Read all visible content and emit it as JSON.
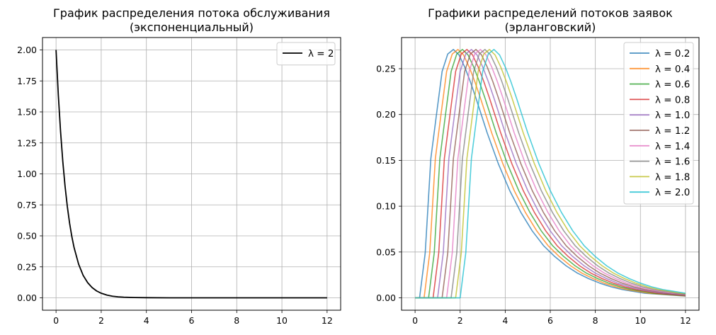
{
  "chart_data": [
    {
      "type": "line",
      "title": [
        "График распределения потока обслуживания",
        "(экспоненциальный)"
      ],
      "xlabel": "",
      "ylabel": "",
      "xlim": [
        -0.6,
        12.6
      ],
      "ylim": [
        -0.1,
        2.1
      ],
      "xticks": [
        0,
        2,
        4,
        6,
        8,
        10,
        12
      ],
      "xtick_labels": [
        "0",
        "2",
        "4",
        "6",
        "8",
        "10",
        "12"
      ],
      "yticks": [
        0.0,
        0.25,
        0.5,
        0.75,
        1.0,
        1.25,
        1.5,
        1.75,
        2.0
      ],
      "ytick_labels": [
        "0.00",
        "0.25",
        "0.50",
        "0.75",
        "1.00",
        "1.25",
        "1.50",
        "1.75",
        "2.00"
      ],
      "grid": true,
      "legend_position": "top-right",
      "series": [
        {
          "name": "λ = 2",
          "color": "#000000",
          "x": [
            0.0,
            0.1,
            0.2,
            0.3,
            0.4,
            0.5,
            0.6,
            0.7,
            0.8,
            1.0,
            1.2,
            1.4,
            1.6,
            1.8,
            2.0,
            2.25,
            2.5,
            2.75,
            3.0,
            3.5,
            4.0,
            5.0,
            6.0,
            8.0,
            10.0,
            12.0
          ],
          "y": [
            2.0,
            1.637,
            1.341,
            1.098,
            0.899,
            0.736,
            0.602,
            0.493,
            0.404,
            0.271,
            0.181,
            0.122,
            0.082,
            0.055,
            0.037,
            0.022,
            0.013,
            0.008,
            0.005,
            0.002,
            0.001,
            0.0,
            0.0,
            0.0,
            0.0,
            0.0
          ]
        }
      ]
    },
    {
      "type": "line",
      "title": [
        "Графики распределений потоков заявок",
        "(эрланговский)"
      ],
      "xlabel": "",
      "ylabel": "",
      "xlim": [
        -0.6,
        12.6
      ],
      "ylim": [
        -0.0135,
        0.284
      ],
      "xticks": [
        0,
        2,
        4,
        6,
        8,
        10,
        12
      ],
      "xtick_labels": [
        "0",
        "2",
        "4",
        "6",
        "8",
        "10",
        "12"
      ],
      "yticks": [
        0.0,
        0.05,
        0.1,
        0.15,
        0.2,
        0.25
      ],
      "ytick_labels": [
        "0.00",
        "0.05",
        "0.10",
        "0.15",
        "0.20",
        "0.25"
      ],
      "grid": true,
      "legend_position": "top-right",
      "series": [
        {
          "name": "λ = 0.2",
          "color": "#1f77b4",
          "shift": 0.2
        },
        {
          "name": "λ = 0.4",
          "color": "#ff7f0e",
          "shift": 0.4
        },
        {
          "name": "λ = 0.6",
          "color": "#2ca02c",
          "shift": 0.6
        },
        {
          "name": "λ = 0.8",
          "color": "#d62728",
          "shift": 0.8
        },
        {
          "name": "λ = 1.0",
          "color": "#9467bd",
          "shift": 1.0
        },
        {
          "name": "λ = 1.2",
          "color": "#8c564b",
          "shift": 1.2
        },
        {
          "name": "λ = 1.4",
          "color": "#e377c2",
          "shift": 1.4
        },
        {
          "name": "λ = 1.6",
          "color": "#7f7f7f",
          "shift": 1.6
        },
        {
          "name": "λ = 1.8",
          "color": "#bcbd22",
          "shift": 1.8
        },
        {
          "name": "λ = 2.0",
          "color": "#17becf",
          "shift": 2.0
        }
      ],
      "curve_x": [
        0.0,
        0.25,
        0.5,
        0.75,
        1.0,
        1.25,
        1.5,
        1.75,
        2.0,
        2.25,
        2.5,
        3.0,
        3.5,
        4.0,
        4.5,
        5.0,
        5.5,
        6.0,
        6.5,
        7.0,
        7.5,
        8.0,
        8.5,
        9.0,
        9.5,
        10.0
      ],
      "curve_y": [
        0.0,
        0.049,
        0.152,
        0.2,
        0.247,
        0.266,
        0.271,
        0.265,
        0.252,
        0.236,
        0.218,
        0.18,
        0.146,
        0.117,
        0.093,
        0.073,
        0.057,
        0.045,
        0.035,
        0.027,
        0.021,
        0.016,
        0.012,
        0.009,
        0.007,
        0.005
      ]
    }
  ]
}
